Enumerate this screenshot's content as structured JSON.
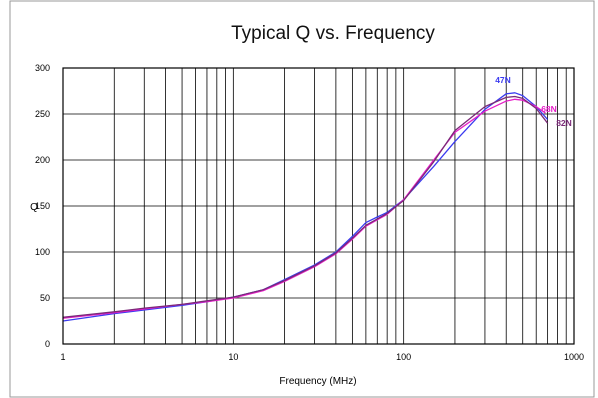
{
  "chart_data": {
    "type": "line",
    "title": "Typical Q vs. Frequency",
    "xlabel": "Frequency (MHz)",
    "ylabel": "Q",
    "xscale": "log",
    "xlim": [
      1,
      1000
    ],
    "ylim": [
      0,
      300
    ],
    "grid": true,
    "x_ticks": [
      "1",
      "10",
      "100",
      "1000"
    ],
    "y_ticks": [
      "0",
      "50",
      "100",
      "150",
      "200",
      "250",
      "300"
    ],
    "series": [
      {
        "name": "47N",
        "color": "#3b3bf0",
        "x": [
          1,
          2,
          3,
          5,
          7,
          10,
          15,
          20,
          30,
          40,
          50,
          60,
          70,
          80,
          100,
          150,
          200,
          300,
          400,
          450,
          500,
          600,
          700
        ],
        "y": [
          25,
          33,
          37,
          42,
          46,
          51,
          59,
          70,
          86,
          100,
          117,
          132,
          138,
          143,
          157,
          193,
          220,
          255,
          272,
          273,
          270,
          258,
          244
        ]
      },
      {
        "name": "68N",
        "color": "#e61ec8",
        "x": [
          1,
          2,
          3,
          5,
          7,
          10,
          15,
          20,
          30,
          40,
          50,
          60,
          70,
          80,
          100,
          150,
          200,
          300,
          400,
          450,
          500,
          600,
          680
        ],
        "y": [
          28,
          34,
          38,
          43,
          46,
          50,
          58,
          68,
          84,
          98,
          114,
          128,
          135,
          141,
          157,
          200,
          230,
          253,
          264,
          266,
          265,
          258,
          251
        ]
      },
      {
        "name": "82N",
        "color": "#7a2a78",
        "x": [
          1,
          2,
          3,
          5,
          7,
          10,
          15,
          20,
          30,
          40,
          50,
          60,
          70,
          80,
          100,
          150,
          200,
          300,
          400,
          450,
          500,
          600,
          700
        ],
        "y": [
          29,
          35,
          39,
          43,
          47,
          51,
          59,
          69,
          85,
          99,
          115,
          129,
          136,
          142,
          156,
          198,
          232,
          258,
          268,
          269,
          267,
          256,
          240
        ]
      }
    ]
  }
}
